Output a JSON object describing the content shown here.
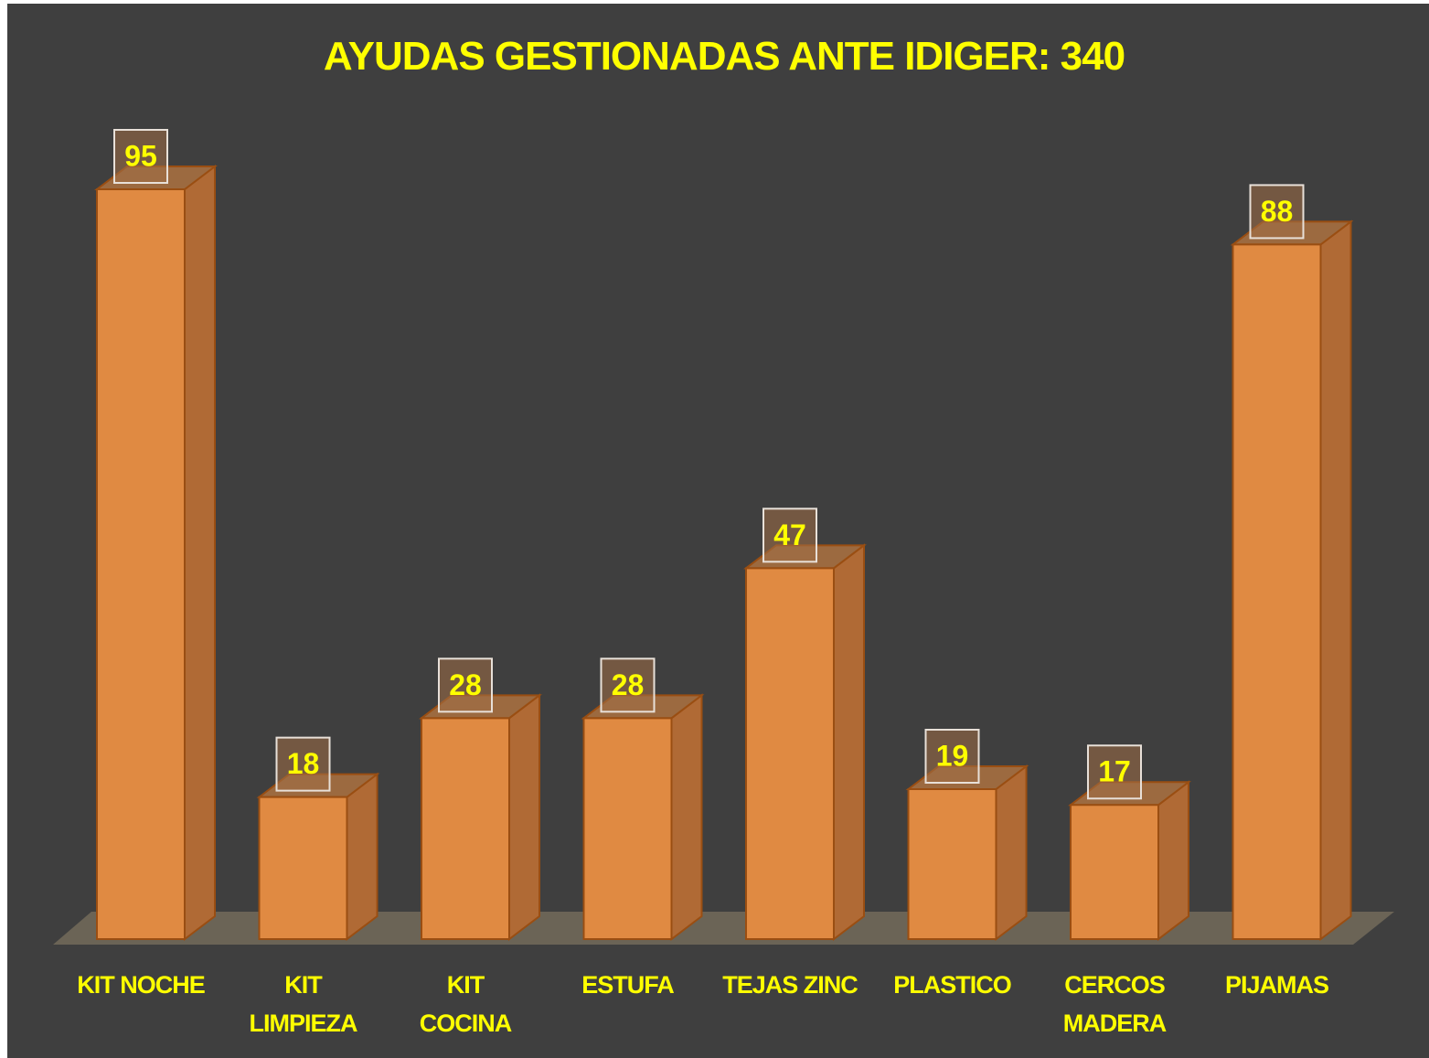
{
  "chart_data": {
    "type": "bar3d",
    "title": "AYUDAS GESTIONADAS ANTE IDIGER: 340",
    "categories": [
      "KIT NOCHE",
      "KIT\nLIMPIEZA",
      "KIT\nCOCINA",
      "ESTUFA",
      "TEJAS ZINC",
      "PLASTICO",
      "CERCOS\nMADERA",
      "PIJAMAS"
    ],
    "values": [
      95,
      18,
      28,
      28,
      47,
      19,
      17,
      88
    ],
    "color": "#e08a42"
  }
}
